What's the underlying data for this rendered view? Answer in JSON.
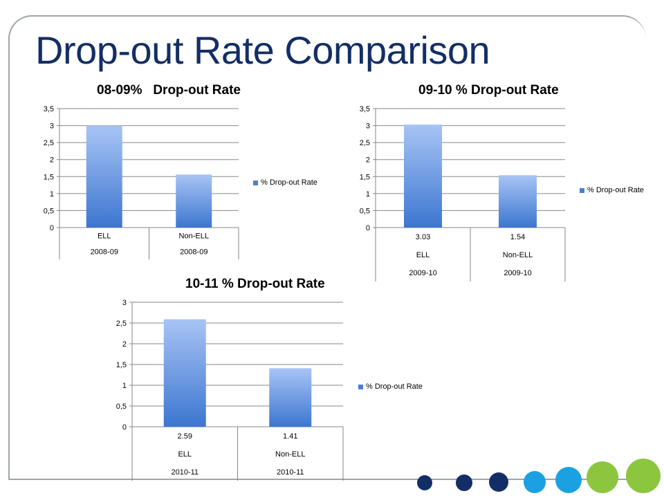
{
  "slide": {
    "title": "Drop-out Rate Comparison"
  },
  "colors": {
    "title": "#132e66",
    "bar_top": "#a8c4f5",
    "bar_bottom": "#3c76d0",
    "grid": "#868686"
  },
  "chart_data": [
    {
      "type": "bar",
      "title": "08-09%   Drop-out Rate",
      "categories": [
        [
          "ELL",
          "2008-09"
        ],
        [
          "Non-ELL",
          "2008-09"
        ]
      ],
      "series": [
        {
          "name": "% Drop-out Rate",
          "values": [
            3.0,
            1.56
          ]
        }
      ],
      "y_ticks": [
        "0",
        "0,5",
        "1",
        "1,5",
        "2",
        "2,5",
        "3",
        "3,5"
      ],
      "ylim": [
        0,
        3.5
      ],
      "grid": true,
      "legend": "right"
    },
    {
      "type": "bar",
      "title": "09-10 % Drop-out Rate",
      "categories": [
        [
          "3.03",
          "ELL",
          "2009-10"
        ],
        [
          "1.54",
          "Non-ELL",
          "2009-10"
        ]
      ],
      "series": [
        {
          "name": "% Drop-out Rate",
          "values": [
            3.03,
            1.54
          ]
        }
      ],
      "y_ticks": [
        "0",
        "0,5",
        "1",
        "1,5",
        "2",
        "2,5",
        "3",
        "3,5"
      ],
      "ylim": [
        0,
        3.5
      ],
      "grid": true,
      "legend": "right"
    },
    {
      "type": "bar",
      "title": "10-11 % Drop-out Rate",
      "categories": [
        [
          "2.59",
          "ELL",
          "2010-11"
        ],
        [
          "1.41",
          "Non-ELL",
          "2010-11"
        ]
      ],
      "series": [
        {
          "name": "% Drop-out Rate",
          "values": [
            2.59,
            1.41
          ]
        }
      ],
      "y_ticks": [
        "0",
        "0,5",
        "1",
        "1,5",
        "2",
        "2,5",
        "3"
      ],
      "ylim": [
        0,
        3
      ],
      "grid": true,
      "legend": "right"
    }
  ],
  "decor": {
    "dot_colors": [
      "#132e66",
      "#132e66",
      "#132e66",
      "#1ba1e2",
      "#1ba1e2",
      "#8cc63f",
      "#8cc63f"
    ]
  }
}
